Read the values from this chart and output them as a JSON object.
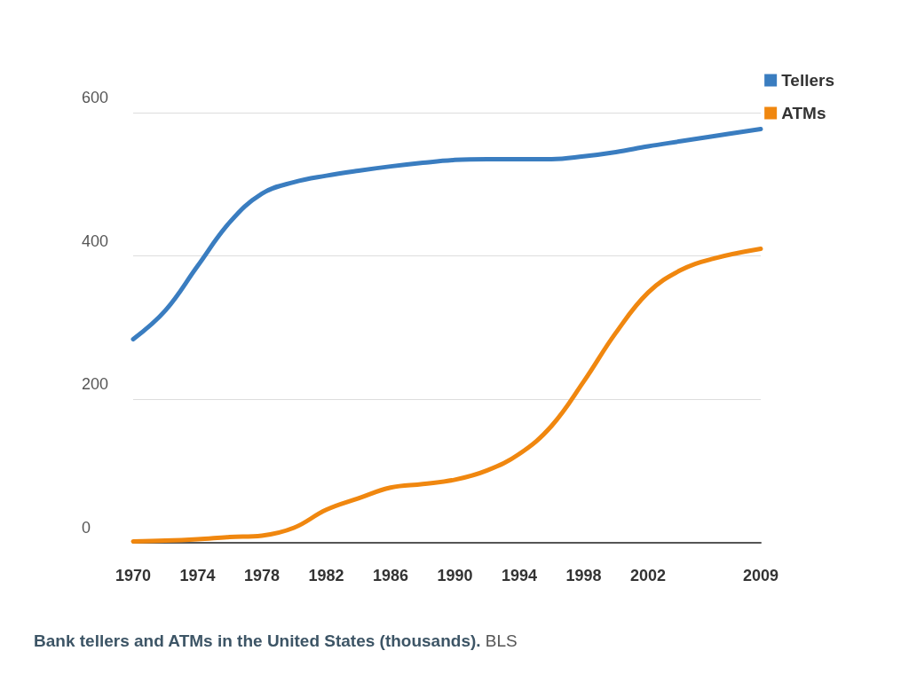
{
  "chart_data": {
    "type": "line",
    "title": "Bank tellers and ATMs in the United States (thousands).",
    "annotations": [
      "BLS"
    ],
    "x": [
      1970,
      1972,
      1974,
      1976,
      1978,
      1980,
      1982,
      1984,
      1986,
      1988,
      1990,
      1992,
      1994,
      1996,
      1998,
      2000,
      2002,
      2004,
      2006,
      2009
    ],
    "series": [
      {
        "name": "Tellers",
        "color": "#3a7dc0",
        "values": [
          284,
          324,
          386,
          447,
          487,
          503,
          512,
          519,
          525,
          530,
          534,
          535,
          535,
          535,
          539,
          545,
          553,
          560,
          567,
          577
        ]
      },
      {
        "name": "ATMs",
        "color": "#f0870f",
        "values": [
          2,
          3,
          5,
          8,
          10,
          21,
          46,
          62,
          77,
          82,
          88,
          101,
          124,
          163,
          225,
          293,
          349,
          380,
          396,
          410
        ]
      }
    ],
    "xlim": [
      1970,
      2009
    ],
    "xticks": [
      1970,
      1974,
      1978,
      1982,
      1986,
      1990,
      1994,
      1998,
      2002,
      2009
    ],
    "ylim": [
      0,
      600
    ],
    "yticks": [
      0,
      200,
      400,
      600
    ],
    "grid": "y",
    "legend": "top right",
    "marker": "none",
    "line_style": "solid"
  }
}
